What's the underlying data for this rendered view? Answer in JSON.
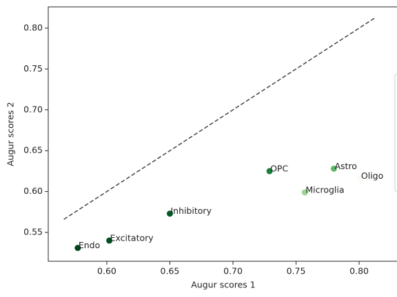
{
  "chart_data": {
    "type": "scatter",
    "xlabel": "Augur scores 1",
    "ylabel": "Augur scores 2",
    "points": [
      {
        "label": "Endo",
        "x": 0.577,
        "y": 0.531,
        "color": "#00441b"
      },
      {
        "label": "Excitatory",
        "x": 0.602,
        "y": 0.54,
        "color": "#00501f"
      },
      {
        "label": "Inhibitory",
        "x": 0.65,
        "y": 0.573,
        "color": "#065a28"
      },
      {
        "label": "OPC",
        "x": 0.729,
        "y": 0.625,
        "color": "#1a7f3a"
      },
      {
        "label": "Astro",
        "x": 0.78,
        "y": 0.628,
        "color": "#5db96b"
      },
      {
        "label": "Microglia",
        "x": 0.757,
        "y": 0.599,
        "color": "#9ad691"
      },
      {
        "label": "Oligo",
        "x": 0.801,
        "y": 0.616,
        "color": "#f7fcf5"
      }
    ],
    "diagonal": [
      0.566,
      0.812
    ],
    "xlim": [
      0.5536,
      0.8311
    ],
    "ylim": [
      0.5147,
      0.826
    ],
    "xticks": [
      {
        "value": 0.6,
        "label": "0.60"
      },
      0.65,
      {
        "value": 0.7,
        "label": "0.70"
      },
      0.75,
      {
        "value": 0.8,
        "label": "0.80"
      }
    ],
    "yticks": [
      0.55,
      {
        "value": 0.6,
        "label": "0.60"
      },
      0.65,
      {
        "value": 0.7,
        "label": "0.70"
      },
      0.75,
      {
        "value": 0.8,
        "label": "0.80"
      }
    ]
  }
}
